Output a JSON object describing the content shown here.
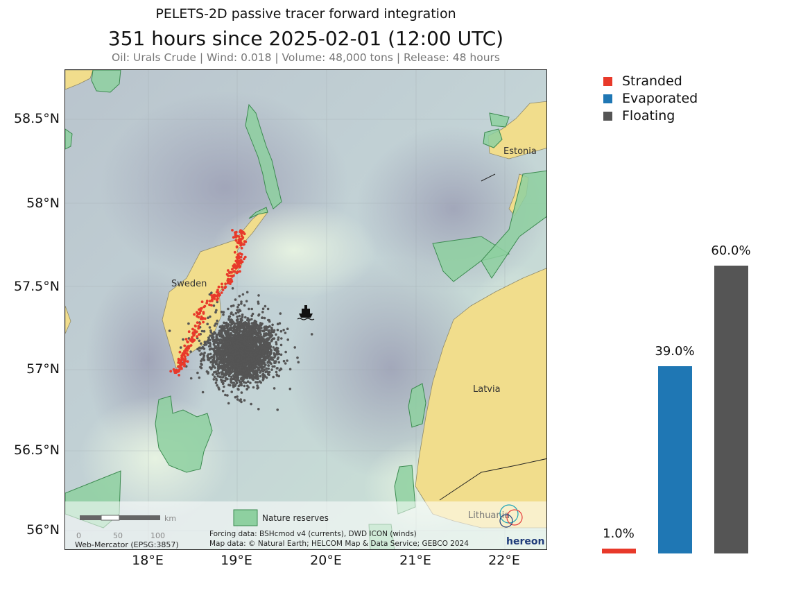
{
  "title": {
    "suptitle": "PELETS-2D passive tracer forward integration",
    "main": "351 hours since 2025-02-01 (12:00 UTC)",
    "subtitle": "Oil: Urals Crude | Wind: 0.018 | Volume: 48,000 tons | Release: 48 hours"
  },
  "map": {
    "lat_ticks": [
      "58.5°N",
      "58°N",
      "57.5°N",
      "57°N",
      "56.5°N",
      "56°N"
    ],
    "lon_ticks": [
      "18°E",
      "19°E",
      "20°E",
      "21°E",
      "22°E"
    ],
    "place_labels": {
      "sweden": "Sweden",
      "estonia": "Estonia",
      "latvia": "Latvia",
      "lithuania": "Lithuania"
    },
    "scalebar": {
      "unit": "km",
      "ticks": [
        "0",
        "50",
        "100"
      ]
    },
    "projection": "Web-Mercator (EPSG:3857)",
    "nature_legend": "Nature reserves",
    "credits": [
      "Forcing data: BSHcmod v4 (currents), DWD ICON (winds)",
      "Map data: © Natural Earth; HELCOM Map & Data Service; GEBCO 2024"
    ],
    "logo_text": "hereon",
    "colors": {
      "land": "#f1dd8c",
      "reserve": "#8ed0a0",
      "sea_deep": "#aeb3c4",
      "sea_shallow": "#d8ecd8"
    }
  },
  "legend": [
    {
      "label": "Stranded",
      "color": "#e8392a"
    },
    {
      "label": "Evaporated",
      "color": "#1f77b4"
    },
    {
      "label": "Floating",
      "color": "#555555"
    }
  ],
  "chart_data": {
    "type": "bar",
    "categories": [
      "Stranded",
      "Evaporated",
      "Floating"
    ],
    "values": [
      1.0,
      39.0,
      60.0
    ],
    "value_labels": [
      "1.0%",
      "39.0%",
      "60.0%"
    ],
    "colors": [
      "#e8392a",
      "#1f77b4",
      "#555555"
    ],
    "ylim": [
      0,
      78
    ]
  }
}
